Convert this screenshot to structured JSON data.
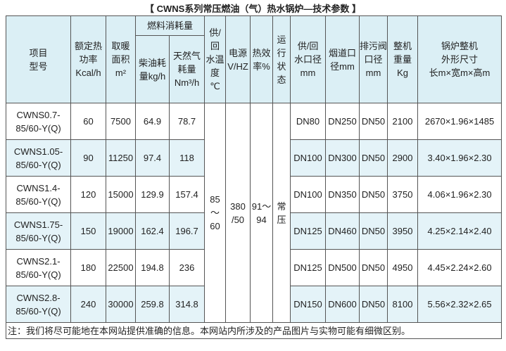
{
  "title": "【 CWNS系列常压燃油（气）热水锅炉—技术参数 】",
  "header": {
    "columns": [
      "项目\n型号",
      "额定热\n功率\nKcal/h",
      "取暖\n面积\nm²",
      "供/\n回\n水温\n度\n℃",
      "电源\nV/HZ",
      "热效\n率%",
      "运\n行\n状\n态",
      "供/回\n水口径\nmm",
      "烟道口\n径mm",
      "排污阀\n口径\nmm",
      "整机\n重量\nKg",
      "锅炉整机\n外形尺寸\n长m×宽m×高m"
    ],
    "fuel_group": "燃料消耗量",
    "fuel_sub": [
      "柴油耗\n量kg/h",
      "天然气\n耗量\nNm³/h"
    ]
  },
  "rows": [
    [
      "CWNS0.7-\n85/60-Y(Q)",
      60,
      7500,
      64.9,
      78.7,
      "DN80",
      "DN250",
      "DN50",
      2100,
      "2670×1.96×1485"
    ],
    [
      "CWNS1.05-\n85/60-Y(Q)",
      90,
      11250,
      97.4,
      118,
      "DN100",
      "DN300",
      "DN50",
      2900,
      "3.40×1.96×2.30"
    ],
    [
      "CWNS1.4-\n85/60-Y(Q)",
      120,
      15000,
      129.9,
      157.4,
      "DN100",
      "DN350",
      "DN50",
      3750,
      "4.06×1.96×2.30"
    ],
    [
      "CWNS1.75-\n85/60-Y(Q)",
      150,
      19000,
      162.4,
      196.7,
      "DN125",
      "DN460",
      "DN50",
      3950,
      "4.25×2.14×2.40"
    ],
    [
      "CWNS2.1-\n85/60-Y(Q)",
      180,
      22500,
      194.8,
      236,
      "DN125",
      "DN500",
      "DN50",
      4950,
      "4.45×2.24×2.60"
    ],
    [
      "CWNS2.8-\n85/60-Y(Q)",
      240,
      30000,
      259.8,
      314.8,
      "DN150",
      "DN600",
      "DN50",
      8100,
      "5.56×2.32×2.65"
    ]
  ],
  "merged": [
    "85\n～\n60",
    "380\n/50",
    "91～\n94",
    "常\n压"
  ],
  "note": "注：我们将尽可能地在本网站提供准确的信息。本网站内所涉及的产品图片与实物可能有细微区别。"
}
